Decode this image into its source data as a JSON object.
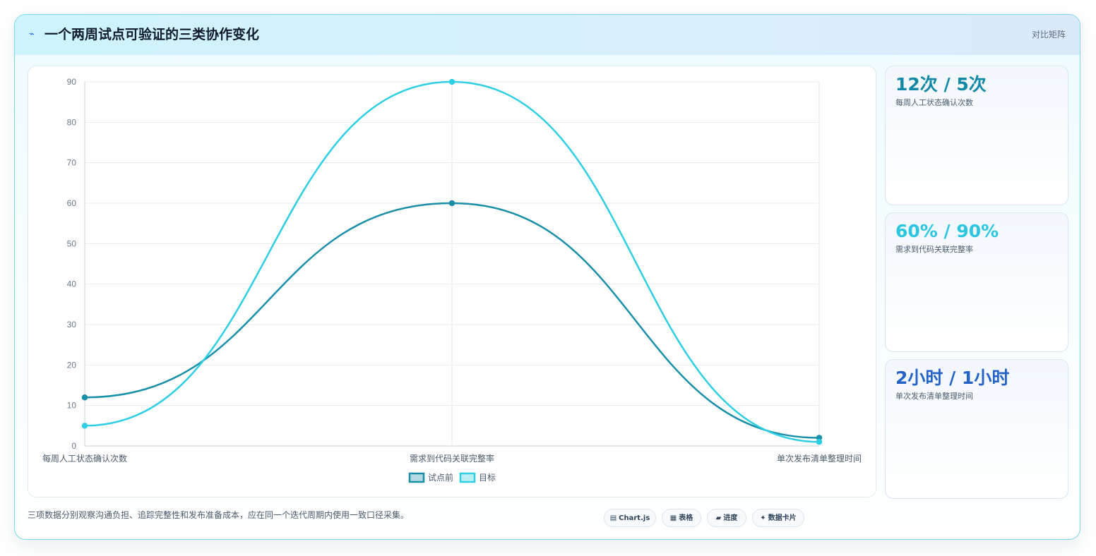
{
  "header": {
    "icon": "lightning-icon",
    "title": "一个两周试点可验证的三类协作变化",
    "tag": "对比矩阵"
  },
  "chart_data": {
    "type": "line",
    "categories": [
      "每周人工状态确认次数",
      "需求到代码关联完整率",
      "单次发布清单整理时间"
    ],
    "series": [
      {
        "name": "试点前",
        "values": [
          12,
          60,
          2
        ],
        "color": "#1a8fa8"
      },
      {
        "name": "目标",
        "values": [
          5,
          90,
          1
        ],
        "color": "#2ecfe2"
      }
    ],
    "ylim": [
      0,
      90
    ],
    "yticks": [
      0,
      10,
      20,
      30,
      40,
      50,
      60,
      70,
      80,
      90
    ],
    "grid": true,
    "legend": "bottom-center",
    "smooth": true
  },
  "stats": [
    {
      "value": "12次 / 5次",
      "label": "每周人工状态确认次数",
      "color": "#1489a6"
    },
    {
      "value": "60% / 90%",
      "label": "需求到代码关联完整率",
      "color": "#2cc6e0"
    },
    {
      "value": "2小时 / 1小时",
      "label": "单次发布清单整理时间",
      "color": "#2563c9"
    }
  ],
  "footer": {
    "note": "三项数据分别观察沟通负担、追踪完整性和发布准备成本，应在同一个迭代周期内使用一致口径采集。",
    "chips": [
      {
        "icon": "chart-icon",
        "label": "Chart.js"
      },
      {
        "icon": "table-icon",
        "label": "表格"
      },
      {
        "icon": "progress-icon",
        "label": "进度"
      },
      {
        "icon": "sparkle-icon",
        "label": "数据卡片"
      }
    ]
  }
}
